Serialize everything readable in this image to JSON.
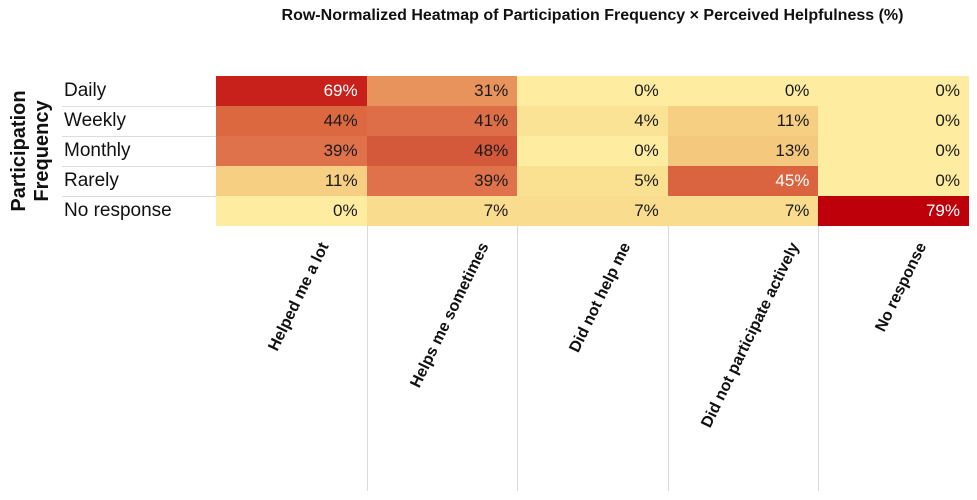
{
  "chart_data": {
    "type": "heatmap",
    "title": "Row-Normalized Heatmap of Participation Frequency × Perceived Helpfulness (%)",
    "ylabel": "Participation Frequency",
    "ylabel_lines": [
      "Participation",
      "Frequency"
    ],
    "rows": [
      "Daily",
      "Weekly",
      "Monthly",
      "Rarely",
      "No response"
    ],
    "columns": [
      "Helped me a lot",
      "Helps me sometimes",
      "Did not help me",
      "Did not participate actively",
      "No response"
    ],
    "values": [
      [
        69,
        31,
        0,
        0,
        0
      ],
      [
        44,
        41,
        4,
        11,
        0
      ],
      [
        39,
        48,
        0,
        13,
        0
      ],
      [
        11,
        39,
        5,
        45,
        0
      ],
      [
        0,
        7,
        7,
        7,
        79
      ]
    ],
    "unit": "%",
    "value_suffix": "%",
    "white_text_cells": [
      [
        0,
        0
      ],
      [
        3,
        3
      ],
      [
        4,
        4
      ]
    ],
    "colormap": {
      "name": "YlOrRd-like",
      "stops": [
        [
          0,
          "#FEECA0"
        ],
        [
          7,
          "#F9DC8D"
        ],
        [
          13,
          "#F4C87D"
        ],
        [
          31,
          "#E8935C"
        ],
        [
          39,
          "#E0724B"
        ],
        [
          44,
          "#DC6840"
        ],
        [
          48,
          "#D4583A"
        ],
        [
          69,
          "#C8201B"
        ],
        [
          79,
          "#BE000A"
        ]
      ]
    },
    "value_range": [
      0,
      79
    ],
    "grid_on": true,
    "grid_color": "#D9D9D9",
    "row_separator_color": "#DCDCDC",
    "cell_text_color": "#1A1A1A",
    "cell_text_color_light": "#FFFFFF",
    "legend_position": "none"
  }
}
